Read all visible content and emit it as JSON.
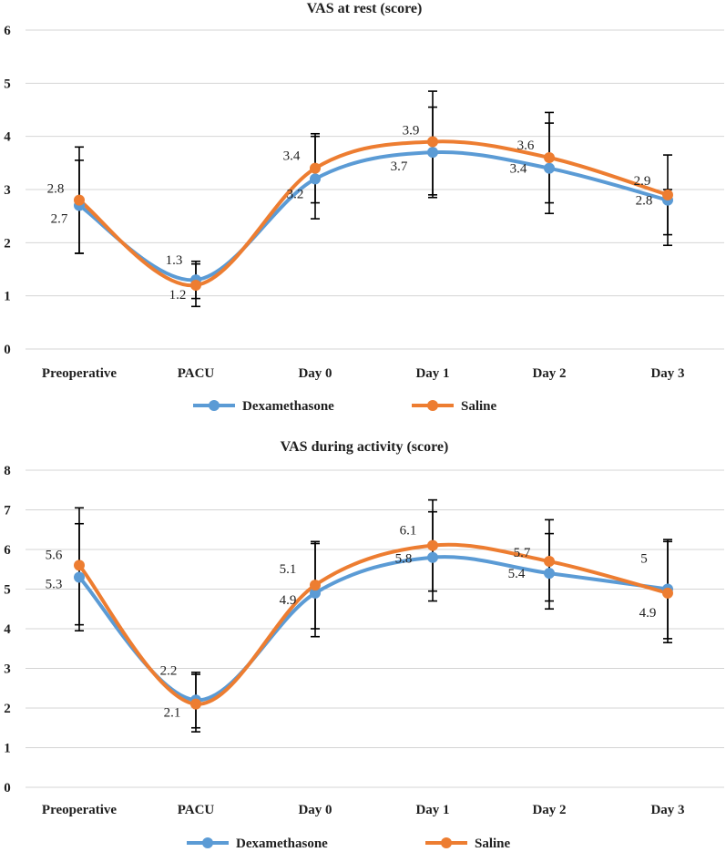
{
  "colors": {
    "dexamethasone": "#5b9bd5",
    "saline": "#ed7d31"
  },
  "chart_data": [
    {
      "type": "line",
      "title": "VAS at rest (score)",
      "categories": [
        "Preoperative",
        "PACU",
        "Day 0",
        "Day 1",
        "Day 2",
        "Day 3"
      ],
      "ylim": [
        0,
        6
      ],
      "yticks": [
        "0",
        "1",
        "2",
        "3",
        "4",
        "5",
        "6"
      ],
      "grid": true,
      "legend": "bottom-center",
      "series": [
        {
          "name": "Dexamethasone",
          "values": [
            2.7,
            1.3,
            3.2,
            3.7,
            3.4,
            2.8
          ],
          "labels": [
            "2.7",
            "1.3",
            "3.2",
            "3.7",
            "3.4",
            "2.8"
          ],
          "error_low": [
            1.8,
            0.95,
            2.75,
            2.85,
            2.75,
            2.15
          ],
          "error_high": [
            3.55,
            1.6,
            4.0,
            4.55,
            4.25,
            3.0
          ]
        },
        {
          "name": "Saline",
          "values": [
            2.8,
            1.2,
            3.4,
            3.9,
            3.6,
            2.9
          ],
          "labels": [
            "2.8",
            "1.2",
            "3.4",
            "3.9",
            "3.6",
            "2.9"
          ],
          "error_low": [
            1.8,
            0.8,
            2.45,
            2.9,
            2.55,
            1.95
          ],
          "error_high": [
            3.8,
            1.65,
            4.05,
            4.85,
            4.45,
            3.65
          ]
        }
      ]
    },
    {
      "type": "line",
      "title": "VAS during activity (score)",
      "categories": [
        "Preoperative",
        "PACU",
        "Day 0",
        "Day 1",
        "Day 2",
        "Day 3"
      ],
      "ylim": [
        0,
        8
      ],
      "yticks": [
        "0",
        "1",
        "2",
        "3",
        "4",
        "5",
        "6",
        "7",
        "8"
      ],
      "grid": true,
      "legend": "bottom-center",
      "series": [
        {
          "name": "Dexamethasone",
          "values": [
            5.3,
            2.2,
            4.9,
            5.8,
            5.4,
            5.0
          ],
          "labels": [
            "5.3",
            "2.2",
            "4.9",
            "5.8",
            "5.4",
            "5"
          ],
          "error_low": [
            4.1,
            1.5,
            4.0,
            4.95,
            4.7,
            3.75
          ],
          "error_high": [
            6.65,
            2.9,
            6.15,
            6.95,
            6.4,
            6.2
          ]
        },
        {
          "name": "Saline",
          "values": [
            5.6,
            2.1,
            5.1,
            6.1,
            5.7,
            4.9
          ],
          "labels": [
            "5.6",
            "2.1",
            "5.1",
            "6.1",
            "5.7",
            "4.9"
          ],
          "error_low": [
            3.95,
            1.4,
            3.8,
            4.7,
            4.5,
            3.65
          ],
          "error_high": [
            7.05,
            2.85,
            6.2,
            7.25,
            6.75,
            6.25
          ]
        }
      ]
    }
  ]
}
